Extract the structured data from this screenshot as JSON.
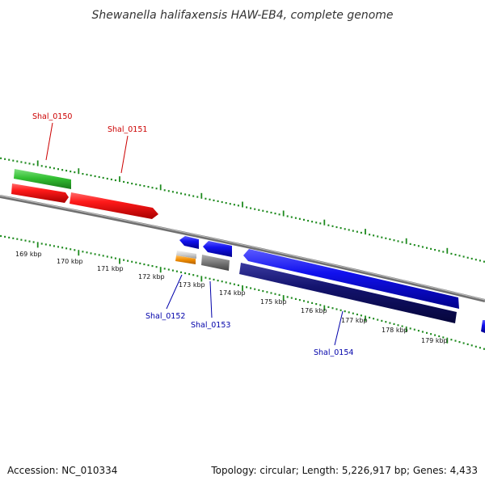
{
  "title": "Shewanella halifaxensis HAW-EB4, complete genome",
  "footer": {
    "accession": "Accession: NC_010334",
    "summary": "Topology: circular; Length: 5,226,917 bp; Genes: 4,433"
  },
  "kbp_labels": [
    "169 kbp",
    "170 kbp",
    "171 kbp",
    "172 kbp",
    "173 kbp",
    "174 kbp",
    "175 kbp",
    "176 kbp",
    "177 kbp",
    "178 kbp",
    "179 kbp"
  ],
  "gene_labels": {
    "shal_0150": "Shal_0150",
    "shal_0151": "Shal_0151",
    "shal_0152": "Shal_0152",
    "shal_0153": "Shal_0153",
    "shal_0154": "Shal_0154"
  },
  "colors": {
    "backbone": "#8a8a8a",
    "tick_green": "#1e8a1e",
    "gene_red": "#ee1111",
    "gene_green": "#33bb33",
    "gene_blue": "#1111ee",
    "gene_navy": "#101070",
    "gene_orange": "#f08c00",
    "gene_gray": "#777777",
    "label_red": "#cc0000",
    "label_blue": "#0000aa"
  }
}
